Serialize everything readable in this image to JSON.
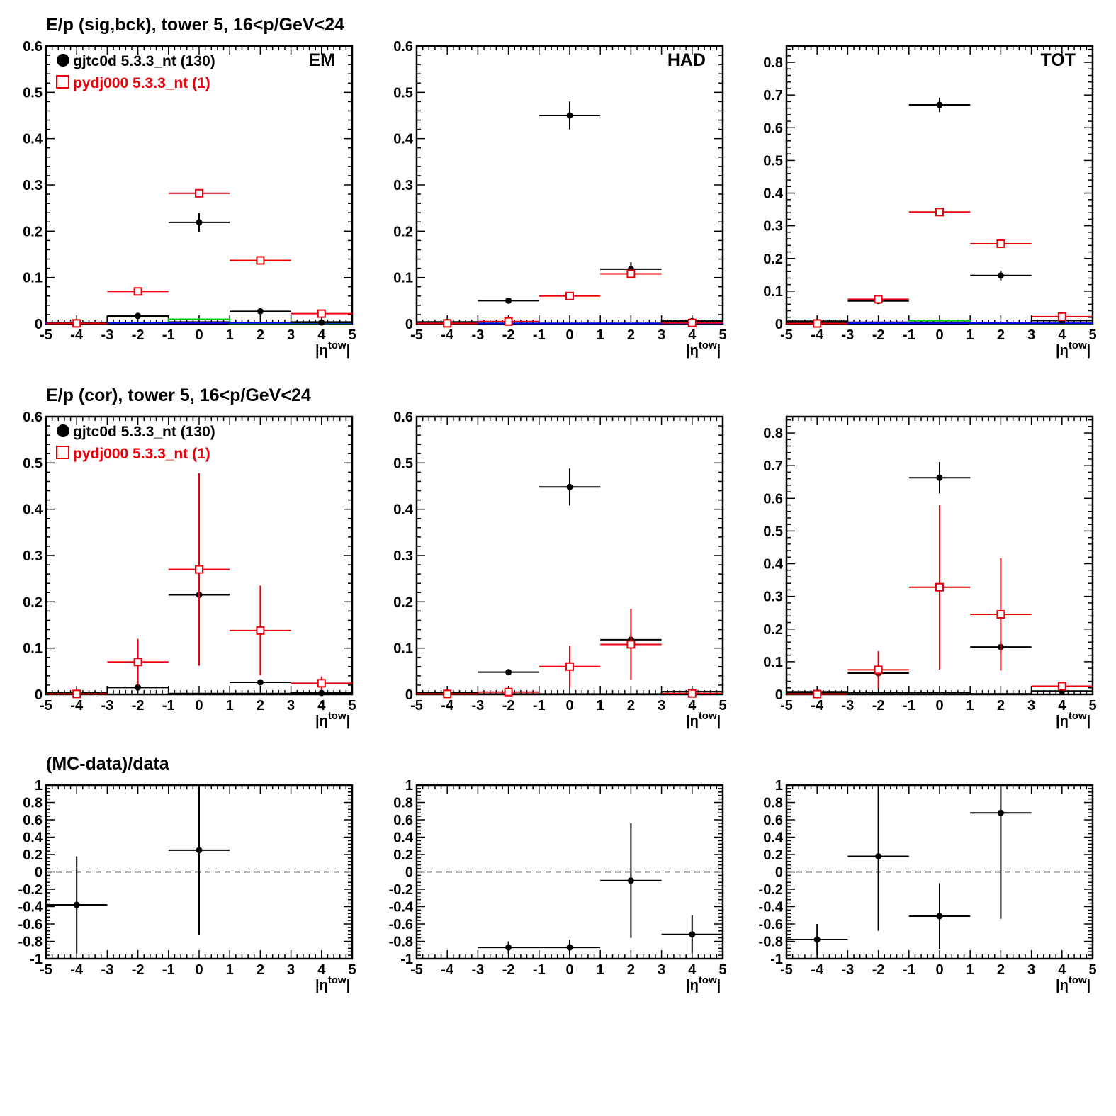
{
  "colors": {
    "data": "#000000",
    "mc": "#e8000b",
    "signal": "#00cc00",
    "background": "#0000ee"
  },
  "chart_data": [
    {
      "type": "scatter",
      "row": "sig-bck",
      "title": "E/p (sig,bck), tower 5, 16<p/GeV<24",
      "corner_label": "EM",
      "xlabel": "|η^tow|",
      "xlim": [
        -5,
        5
      ],
      "ylim": [
        0,
        0.6
      ],
      "yticks": [
        "0",
        "0.1",
        "0.2",
        "0.3",
        "0.4",
        "0.5",
        "0.6"
      ],
      "xticks": [
        "-5",
        "-4",
        "-3",
        "-2",
        "-1",
        "0",
        "1",
        "2",
        "3",
        "4",
        "5"
      ],
      "legend": [
        {
          "label": "gjtc0d 5.3.3_nt (130)",
          "style": "data"
        },
        {
          "label": "pydj000 5.3.3_nt (1)",
          "style": "mc"
        }
      ],
      "legend_position": "top-left",
      "series": [
        {
          "name": "gjtc0d 5.3.3_nt (130)",
          "style": "data",
          "x": [
            -4,
            -2,
            0,
            2,
            4
          ],
          "xerr": [
            1,
            1,
            1,
            1,
            1
          ],
          "y": [
            0.002,
            0.017,
            0.219,
            0.027,
            0.003
          ],
          "yerr": [
            0.001,
            0.002,
            0.02,
            0.003,
            0.001
          ]
        },
        {
          "name": "pydj000 5.3.3_nt (1)",
          "style": "mc",
          "x": [
            -4,
            -2,
            0,
            2,
            4
          ],
          "xerr": [
            1,
            1,
            1,
            1,
            1
          ],
          "y": [
            0.001,
            0.07,
            0.282,
            0.137,
            0.022
          ],
          "yerr": [
            0.001,
            0.002,
            0.003,
            0.002,
            0.002
          ]
        }
      ],
      "histograms": [
        {
          "style": "data",
          "edges": [
            -5,
            -3,
            -1,
            1,
            3,
            5
          ],
          "values": [
            0.003,
            0.016,
            0.004,
            0.002,
            0.004
          ]
        },
        {
          "style": "signal",
          "edges": [
            -5,
            -1,
            1,
            5
          ],
          "values": [
            0.002,
            0.01,
            0.001
          ]
        },
        {
          "style": "background",
          "edges": [
            -5,
            5
          ],
          "values": [
            0.002
          ]
        }
      ]
    },
    {
      "type": "scatter",
      "row": "sig-bck",
      "title": "",
      "corner_label": "HAD",
      "xlabel": "|η^tow|",
      "xlim": [
        -5,
        5
      ],
      "ylim": [
        0,
        0.6
      ],
      "yticks": [
        "0",
        "0.1",
        "0.2",
        "0.3",
        "0.4",
        "0.5",
        "0.6"
      ],
      "xticks": [
        "-5",
        "-4",
        "-3",
        "-2",
        "-1",
        "0",
        "1",
        "2",
        "3",
        "4",
        "5"
      ],
      "legend": [],
      "series": [
        {
          "name": "gjtc0d 5.3.3_nt (130)",
          "style": "data",
          "x": [
            -4,
            -2,
            0,
            2,
            4
          ],
          "xerr": [
            1,
            1,
            1,
            1,
            1
          ],
          "y": [
            0.004,
            0.05,
            0.45,
            0.118,
            0.006
          ],
          "yerr": [
            0.002,
            0.003,
            0.03,
            0.015,
            0.003
          ]
        },
        {
          "name": "pydj000 5.3.3_nt (1)",
          "style": "mc",
          "x": [
            -4,
            -2,
            0,
            2,
            4
          ],
          "xerr": [
            1,
            1,
            1,
            1,
            1
          ],
          "y": [
            0.001,
            0.005,
            0.06,
            0.108,
            0.002
          ],
          "yerr": [
            0.001,
            0.001,
            0.002,
            0.003,
            0.001
          ]
        }
      ],
      "histograms": [
        {
          "style": "data",
          "edges": [
            -5,
            -3,
            3,
            5
          ],
          "values": [
            0.004,
            0.001,
            0.006
          ]
        },
        {
          "style": "signal",
          "edges": [
            -5,
            5
          ],
          "values": [
            0.001
          ]
        },
        {
          "style": "background",
          "edges": [
            -5,
            5
          ],
          "values": [
            0.001
          ]
        }
      ]
    },
    {
      "type": "scatter",
      "row": "sig-bck",
      "title": "",
      "corner_label": "TOT",
      "xlabel": "|η^tow|",
      "xlim": [
        -5,
        5
      ],
      "ylim": [
        0,
        0.85
      ],
      "yticks": [
        "0",
        "0.1",
        "0.2",
        "0.3",
        "0.4",
        "0.5",
        "0.6",
        "0.7",
        "0.8"
      ],
      "xticks": [
        "-5",
        "-4",
        "-3",
        "-2",
        "-1",
        "0",
        "1",
        "2",
        "3",
        "4",
        "5"
      ],
      "legend": [],
      "series": [
        {
          "name": "gjtc0d 5.3.3_nt (130)",
          "style": "data",
          "x": [
            -4,
            -2,
            0,
            2,
            4
          ],
          "xerr": [
            1,
            1,
            1,
            1,
            1
          ],
          "y": [
            0.005,
            0.07,
            0.67,
            0.148,
            0.01
          ],
          "yerr": [
            0.003,
            0.004,
            0.022,
            0.015,
            0.003
          ]
        },
        {
          "name": "pydj000 5.3.3_nt (1)",
          "style": "mc",
          "x": [
            -4,
            -2,
            0,
            2,
            4
          ],
          "xerr": [
            1,
            1,
            1,
            1,
            1
          ],
          "y": [
            0.001,
            0.075,
            0.342,
            0.245,
            0.022
          ],
          "yerr": [
            0.001,
            0.002,
            0.003,
            0.003,
            0.002
          ]
        }
      ],
      "histograms": [
        {
          "style": "data",
          "edges": [
            -5,
            -3,
            -1,
            1,
            3,
            5
          ],
          "values": [
            0.008,
            0.005,
            0.005,
            0.002,
            0.01
          ]
        },
        {
          "style": "signal",
          "edges": [
            -5,
            -1,
            1,
            5
          ],
          "values": [
            0.002,
            0.01,
            0.001
          ]
        },
        {
          "style": "background",
          "edges": [
            -5,
            5
          ],
          "values": [
            0.002
          ]
        }
      ]
    },
    {
      "type": "scatter",
      "row": "cor",
      "title": "E/p (cor), tower 5, 16<p/GeV<24",
      "corner_label": "",
      "xlabel": "|η^tow|",
      "xlim": [
        -5,
        5
      ],
      "ylim": [
        0,
        0.6
      ],
      "yticks": [
        "0",
        "0.1",
        "0.2",
        "0.3",
        "0.4",
        "0.5",
        "0.6"
      ],
      "xticks": [
        "-5",
        "-4",
        "-3",
        "-2",
        "-1",
        "0",
        "1",
        "2",
        "3",
        "4",
        "5"
      ],
      "legend": [
        {
          "label": "gjtc0d 5.3.3_nt (130)",
          "style": "data"
        },
        {
          "label": "pydj000 5.3.3_nt (1)",
          "style": "mc"
        }
      ],
      "legend_position": "top-left",
      "series": [
        {
          "name": "gjtc0d 5.3.3_nt (130)",
          "style": "data",
          "x": [
            -4,
            -2,
            0,
            2,
            4
          ],
          "xerr": [
            1,
            1,
            1,
            1,
            1
          ],
          "y": [
            0.002,
            0.015,
            0.215,
            0.026,
            0.003
          ],
          "yerr": [
            0.001,
            0.002,
            0.02,
            0.003,
            0.001
          ]
        },
        {
          "name": "pydj000 5.3.3_nt (1)",
          "style": "mc",
          "x": [
            -4,
            -2,
            0,
            2,
            4
          ],
          "xerr": [
            1,
            1,
            1,
            1,
            1
          ],
          "y": [
            0.001,
            0.07,
            0.27,
            0.138,
            0.024
          ],
          "yerr": [
            0.002,
            0.05,
            0.208,
            0.097,
            0.015
          ]
        }
      ],
      "histograms": [
        {
          "style": "data",
          "edges": [
            -5,
            -3,
            -1,
            1,
            3,
            5
          ],
          "values": [
            0.003,
            0.015,
            0.002,
            0.002,
            0.004
          ]
        }
      ]
    },
    {
      "type": "scatter",
      "row": "cor",
      "title": "",
      "corner_label": "",
      "xlabel": "|η^tow|",
      "xlim": [
        -5,
        5
      ],
      "ylim": [
        0,
        0.6
      ],
      "yticks": [
        "0",
        "0.1",
        "0.2",
        "0.3",
        "0.4",
        "0.5",
        "0.6"
      ],
      "xticks": [
        "-5",
        "-4",
        "-3",
        "-2",
        "-1",
        "0",
        "1",
        "2",
        "3",
        "4",
        "5"
      ],
      "legend": [],
      "series": [
        {
          "name": "gjtc0d 5.3.3_nt (130)",
          "style": "data",
          "x": [
            -4,
            -2,
            0,
            2,
            4
          ],
          "xerr": [
            1,
            1,
            1,
            1,
            1
          ],
          "y": [
            0.004,
            0.048,
            0.448,
            0.118,
            0.006
          ],
          "yerr": [
            0.003,
            0.003,
            0.04,
            0.015,
            0.003
          ]
        },
        {
          "name": "pydj000 5.3.3_nt (1)",
          "style": "mc",
          "x": [
            -4,
            -2,
            0,
            2,
            4
          ],
          "xerr": [
            1,
            1,
            1,
            1,
            1
          ],
          "y": [
            0.001,
            0.005,
            0.06,
            0.108,
            0.002
          ],
          "yerr": [
            0.001,
            0.003,
            0.045,
            0.077,
            0.001
          ]
        }
      ],
      "histograms": [
        {
          "style": "data",
          "edges": [
            -5,
            -3,
            3,
            5
          ],
          "values": [
            0.004,
            0.001,
            0.006
          ]
        }
      ]
    },
    {
      "type": "scatter",
      "row": "cor",
      "title": "",
      "corner_label": "",
      "xlabel": "|η^tow|",
      "xlim": [
        -5,
        5
      ],
      "ylim": [
        0,
        0.85
      ],
      "yticks": [
        "0",
        "0.1",
        "0.2",
        "0.3",
        "0.4",
        "0.5",
        "0.6",
        "0.7",
        "0.8"
      ],
      "xticks": [
        "-5",
        "-4",
        "-3",
        "-2",
        "-1",
        "0",
        "1",
        "2",
        "3",
        "4",
        "5"
      ],
      "legend": [],
      "series": [
        {
          "name": "gjtc0d 5.3.3_nt (130)",
          "style": "data",
          "x": [
            -4,
            -2,
            0,
            2,
            4
          ],
          "xerr": [
            1,
            1,
            1,
            1,
            1
          ],
          "y": [
            0.005,
            0.065,
            0.663,
            0.145,
            0.01
          ],
          "yerr": [
            0.01,
            0.015,
            0.048,
            0.02,
            0.003
          ]
        },
        {
          "name": "pydj000 5.3.3_nt (1)",
          "style": "mc",
          "x": [
            -4,
            -2,
            0,
            2,
            4
          ],
          "xerr": [
            1,
            1,
            1,
            1,
            1
          ],
          "y": [
            0.001,
            0.075,
            0.328,
            0.245,
            0.025
          ],
          "yerr": [
            0.002,
            0.057,
            0.252,
            0.172,
            0.013
          ]
        }
      ],
      "histograms": [
        {
          "style": "data",
          "edges": [
            -5,
            -3,
            -1,
            1,
            3,
            5
          ],
          "values": [
            0.008,
            0.005,
            0.005,
            0.002,
            0.01
          ]
        }
      ]
    },
    {
      "type": "scatter",
      "row": "ratio",
      "title": "(MC-data)/data",
      "corner_label": "",
      "xlabel": "|η^tow|",
      "xlim": [
        -5,
        5
      ],
      "ylim": [
        -1,
        1
      ],
      "yticks": [
        "-1",
        "-0.8",
        "-0.6",
        "-0.4",
        "-0.2",
        "0",
        "0.2",
        "0.4",
        "0.6",
        "0.8",
        "1"
      ],
      "xticks": [
        "-5",
        "-4",
        "-3",
        "-2",
        "-1",
        "0",
        "1",
        "2",
        "3",
        "4",
        "5"
      ],
      "reference_line": 0,
      "legend": [],
      "series": [
        {
          "name": "",
          "style": "data",
          "x": [
            -4,
            0
          ],
          "xerr": [
            1,
            1
          ],
          "y": [
            -0.38,
            0.25
          ],
          "yerr": [
            0.56,
            0.98
          ]
        }
      ],
      "histograms": []
    },
    {
      "type": "scatter",
      "row": "ratio",
      "title": "",
      "corner_label": "",
      "xlabel": "|η^tow|",
      "xlim": [
        -5,
        5
      ],
      "ylim": [
        -1,
        1
      ],
      "yticks": [
        "-1",
        "-0.8",
        "-0.6",
        "-0.4",
        "-0.2",
        "0",
        "0.2",
        "0.4",
        "0.6",
        "0.8",
        "1"
      ],
      "xticks": [
        "-5",
        "-4",
        "-3",
        "-2",
        "-1",
        "0",
        "1",
        "2",
        "3",
        "4",
        "5"
      ],
      "reference_line": 0,
      "legend": [],
      "series": [
        {
          "name": "",
          "style": "data",
          "x": [
            -2,
            0,
            2,
            4
          ],
          "xerr": [
            1,
            1,
            1,
            1
          ],
          "y": [
            -0.87,
            -0.87,
            -0.1,
            -0.72
          ],
          "yerr": [
            0.07,
            0.09,
            0.66,
            0.22
          ]
        }
      ],
      "histograms": []
    },
    {
      "type": "scatter",
      "row": "ratio",
      "title": "",
      "corner_label": "",
      "xlabel": "|η^tow|",
      "xlim": [
        -5,
        5
      ],
      "ylim": [
        -1,
        1
      ],
      "yticks": [
        "-1",
        "-0.8",
        "-0.6",
        "-0.4",
        "-0.2",
        "0",
        "0.2",
        "0.4",
        "0.6",
        "0.8",
        "1"
      ],
      "xticks": [
        "-5",
        "-4",
        "-3",
        "-2",
        "-1",
        "0",
        "1",
        "2",
        "3",
        "4",
        "5"
      ],
      "reference_line": 0,
      "legend": [],
      "series": [
        {
          "name": "",
          "style": "data",
          "x": [
            -4,
            -2,
            0,
            2
          ],
          "xerr": [
            1,
            1,
            1,
            1
          ],
          "y": [
            -0.78,
            0.18,
            -0.51,
            0.68
          ],
          "yerr": [
            0.18,
            0.86,
            0.38,
            1.22
          ]
        }
      ],
      "histograms": []
    }
  ]
}
